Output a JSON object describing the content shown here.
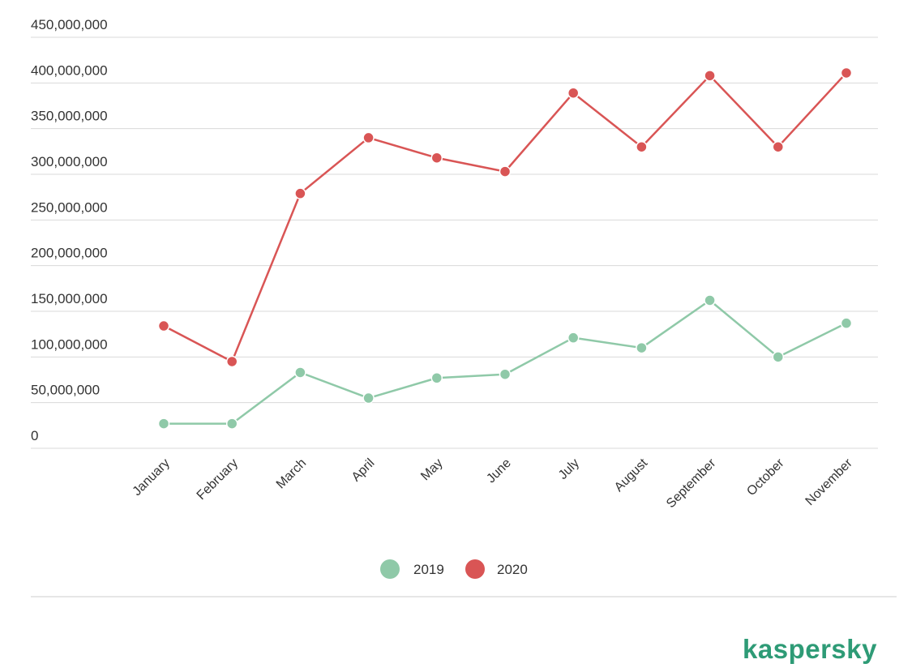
{
  "chart_data": {
    "type": "line",
    "categories": [
      "January",
      "February",
      "March",
      "April",
      "May",
      "June",
      "July",
      "August",
      "September",
      "October",
      "November"
    ],
    "y_tick_labels": [
      "0",
      "50,000,000",
      "100,000,000",
      "150,000,000",
      "200,000,000",
      "250,000,000",
      "300,000,000",
      "350,000,000",
      "400,000,000",
      "450,000,000"
    ],
    "ylim": [
      0,
      450000000
    ],
    "grid": true,
    "legend_position": "bottom-center",
    "series": [
      {
        "name": "2019",
        "color": "#8fc9a8",
        "values": [
          27000000,
          27000000,
          83000000,
          55000000,
          77000000,
          81000000,
          121000000,
          110000000,
          162000000,
          100000000,
          137000000
        ]
      },
      {
        "name": "2020",
        "color": "#d95555",
        "values": [
          134000000,
          95000000,
          279000000,
          340000000,
          318000000,
          303000000,
          389000000,
          330000000,
          408000000,
          330000000,
          411000000
        ]
      }
    ]
  },
  "legend": {
    "items": [
      "2019",
      "2020"
    ]
  },
  "branding": {
    "logo_text": "kaspersky",
    "logo_color": "#2e9b76"
  }
}
